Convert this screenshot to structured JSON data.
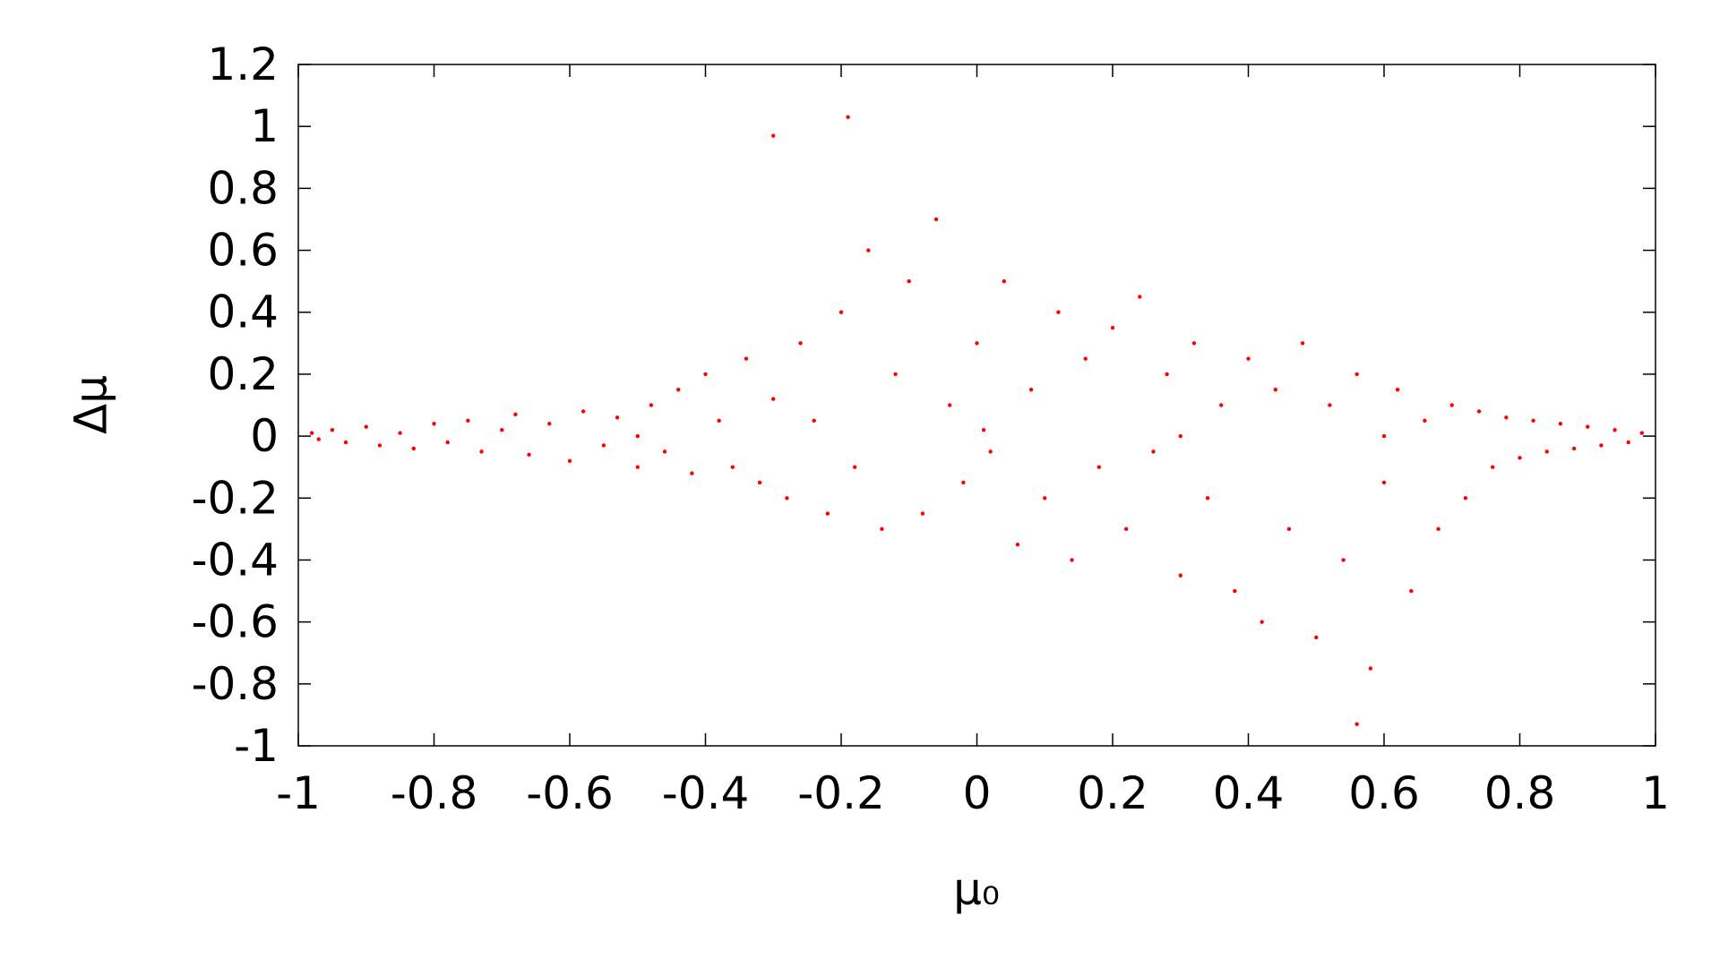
{
  "chart_data": {
    "type": "scatter",
    "xlabel": "μ₀",
    "ylabel": "Δμ",
    "xlim": [
      -1,
      1
    ],
    "ylim": [
      -1,
      1.2
    ],
    "xticks": [
      -1,
      -0.8,
      -0.6,
      -0.4,
      -0.2,
      0,
      0.2,
      0.4,
      0.6,
      0.8,
      1
    ],
    "yticks": [
      -1,
      -0.8,
      -0.6,
      -0.4,
      -0.2,
      0,
      0.2,
      0.4,
      0.6,
      0.8,
      1,
      1.2
    ],
    "series": [
      {
        "color": "#ff0000",
        "x": [
          -0.98,
          -0.97,
          -0.95,
          -0.93,
          -0.9,
          -0.88,
          -0.85,
          -0.83,
          -0.8,
          -0.78,
          -0.75,
          -0.73,
          -0.7,
          -0.68,
          -0.66,
          -0.63,
          -0.6,
          -0.58,
          -0.55,
          -0.53,
          -0.5,
          -0.48,
          -0.46,
          -0.44,
          -0.42,
          -0.4,
          -0.38,
          -0.36,
          -0.34,
          -0.32,
          -0.3,
          -0.28,
          -0.26,
          -0.24,
          -0.22,
          -0.2,
          -0.18,
          -0.16,
          -0.14,
          -0.12,
          -0.1,
          -0.08,
          -0.06,
          -0.04,
          -0.02,
          0,
          0.02,
          0.04,
          0.06,
          0.08,
          0.1,
          0.12,
          0.14,
          0.16,
          0.18,
          0.2,
          0.22,
          0.24,
          0.26,
          0.28,
          0.3,
          0.32,
          0.34,
          0.36,
          0.38,
          0.4,
          0.42,
          0.44,
          0.46,
          0.48,
          0.5,
          0.52,
          0.54,
          0.56,
          0.58,
          0.6,
          0.62,
          0.64,
          0.66,
          0.68,
          0.7,
          0.72,
          0.74,
          0.76,
          0.78,
          0.8,
          0.82,
          0.84,
          0.86,
          0.88,
          0.9,
          0.92,
          0.94,
          0.96,
          0.98,
          -0.19,
          -0.3,
          0.56,
          0.01,
          0.3,
          -0.5,
          0.6
        ],
        "values": [
          0.01,
          -0.01,
          0.02,
          -0.02,
          0.03,
          -0.03,
          0.01,
          -0.04,
          0.04,
          -0.02,
          0.05,
          -0.05,
          0.02,
          0.07,
          -0.06,
          0.04,
          -0.08,
          0.08,
          -0.03,
          0.06,
          -0.1,
          0.1,
          -0.05,
          0.15,
          -0.12,
          0.2,
          0.05,
          -0.1,
          0.25,
          -0.15,
          0.12,
          -0.2,
          0.3,
          0.05,
          -0.25,
          0.4,
          -0.1,
          0.6,
          -0.3,
          0.2,
          0.5,
          -0.25,
          0.7,
          0.1,
          -0.15,
          0.3,
          -0.05,
          0.5,
          -0.35,
          0.15,
          -0.2,
          0.4,
          -0.4,
          0.25,
          -0.1,
          0.35,
          -0.3,
          0.45,
          -0.05,
          0.2,
          -0.45,
          0.3,
          -0.2,
          0.1,
          -0.5,
          0.25,
          -0.6,
          0.15,
          -0.3,
          0.3,
          -0.65,
          0.1,
          -0.4,
          0.2,
          -0.75,
          -0.15,
          0.15,
          -0.5,
          0.05,
          -0.3,
          0.1,
          -0.2,
          0.08,
          -0.1,
          0.06,
          -0.07,
          0.05,
          -0.05,
          0.04,
          -0.04,
          0.03,
          -0.03,
          0.02,
          -0.02,
          0.01,
          1.03,
          0.97,
          -0.93,
          0.02,
          0,
          0,
          0
        ]
      }
    ]
  }
}
